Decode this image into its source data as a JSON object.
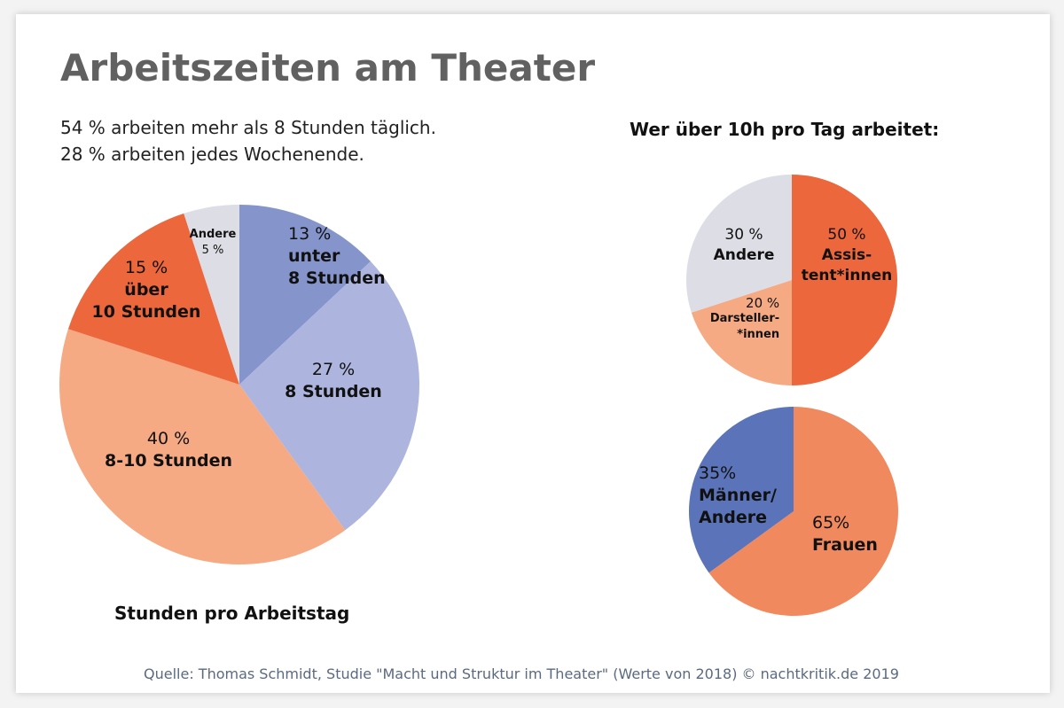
{
  "title": "Arbeitszeiten am Theater",
  "subtitle_lines": [
    "54 % arbeiten mehr als 8 Stunden täglich.",
    "28 % arbeiten jedes Wochenende."
  ],
  "right_heading": "Wer über 10h pro Tag arbeitet:",
  "source": "Quelle: Thomas Schmidt, Studie \"Macht und Struktur im Theater\" (Werte von 2018) © nachtkritik.de 2019",
  "chart_data": [
    {
      "type": "pie",
      "title": "Stunden pro Arbeitstag",
      "start": "top",
      "direction": "clockwise",
      "slices": [
        {
          "pct_label": "13 %",
          "name": "unter 8 Stunden",
          "value": 13,
          "color": "#8595cc"
        },
        {
          "pct_label": "27 %",
          "name": "8 Stunden",
          "value": 27,
          "color": "#adb5de"
        },
        {
          "pct_label": "40 %",
          "name": "8-10 Stunden",
          "value": 40,
          "color": "#f5aa84"
        },
        {
          "pct_label": "15 %",
          "name": "über 10 Stunden",
          "value": 15,
          "color": "#ec673c"
        },
        {
          "pct_label": "5 %",
          "name": "Andere",
          "value": 5,
          "color": "#dddde6"
        }
      ]
    },
    {
      "type": "pie",
      "start": "top",
      "direction": "clockwise",
      "slices": [
        {
          "pct_label": "50 %",
          "name": "Assis-tent*innen",
          "value": 50,
          "color": "#ec673c"
        },
        {
          "pct_label": "20 %",
          "name": "Darsteller-*innen",
          "value": 20,
          "color": "#f5aa84"
        },
        {
          "pct_label": "30 %",
          "name": "Andere",
          "value": 30,
          "color": "#dddde6"
        }
      ]
    },
    {
      "type": "pie",
      "start": "top",
      "direction": "clockwise",
      "slices": [
        {
          "pct_label": "65%",
          "name": "Frauen",
          "value": 65,
          "color": "#f0895e"
        },
        {
          "pct_label": "35%",
          "name": "Männer/ Andere",
          "value": 35,
          "color": "#5b73b8"
        }
      ]
    }
  ]
}
